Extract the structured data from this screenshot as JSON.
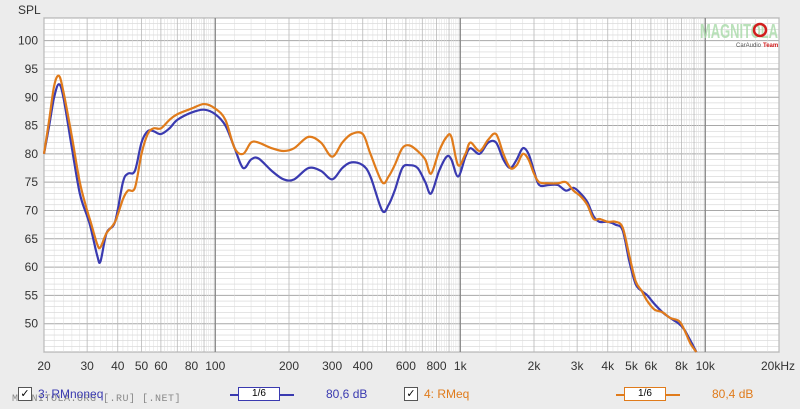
{
  "chart_data": {
    "type": "line",
    "ylabel": "SPL",
    "xscale": "log",
    "xlim": [
      20,
      20000
    ],
    "ylim": [
      45,
      104
    ],
    "grid": true,
    "yticks": [
      50,
      55,
      60,
      65,
      70,
      75,
      80,
      85,
      90,
      95,
      100
    ],
    "xticks": [
      {
        "v": 20,
        "label": "20"
      },
      {
        "v": 30,
        "label": "30"
      },
      {
        "v": 40,
        "label": "40"
      },
      {
        "v": 50,
        "label": "50"
      },
      {
        "v": 60,
        "label": "60"
      },
      {
        "v": 80,
        "label": "80"
      },
      {
        "v": 100,
        "label": "100"
      },
      {
        "v": 200,
        "label": "200"
      },
      {
        "v": 300,
        "label": "300"
      },
      {
        "v": 400,
        "label": "400"
      },
      {
        "v": 600,
        "label": "600"
      },
      {
        "v": 800,
        "label": "800"
      },
      {
        "v": 1000,
        "label": "1k"
      },
      {
        "v": 2000,
        "label": "2k"
      },
      {
        "v": 3000,
        "label": "3k"
      },
      {
        "v": 4000,
        "label": "4k"
      },
      {
        "v": 5000,
        "label": "5k"
      },
      {
        "v": 6000,
        "label": "6k"
      },
      {
        "v": 8000,
        "label": "8k"
      },
      {
        "v": 10000,
        "label": "10k"
      },
      {
        "v": 20000,
        "label": "20kHz"
      }
    ],
    "series": [
      {
        "name": "3: RMnoneq",
        "color": "#3a3ab0",
        "points": [
          [
            20,
            80
          ],
          [
            21,
            85
          ],
          [
            22,
            90
          ],
          [
            23,
            92.3
          ],
          [
            24,
            90
          ],
          [
            26,
            81
          ],
          [
            28,
            73
          ],
          [
            30,
            69
          ],
          [
            31,
            67
          ],
          [
            33,
            62
          ],
          [
            34,
            61
          ],
          [
            36,
            66
          ],
          [
            39,
            68
          ],
          [
            42,
            75
          ],
          [
            44,
            76.5
          ],
          [
            47,
            77
          ],
          [
            50,
            82
          ],
          [
            53,
            84
          ],
          [
            56,
            84
          ],
          [
            60,
            83.5
          ],
          [
            65,
            84.5
          ],
          [
            70,
            86
          ],
          [
            80,
            87.3
          ],
          [
            90,
            87.8
          ],
          [
            100,
            87
          ],
          [
            110,
            85
          ],
          [
            120,
            81
          ],
          [
            130,
            77.5
          ],
          [
            140,
            79
          ],
          [
            150,
            79.2
          ],
          [
            170,
            77
          ],
          [
            190,
            75.5
          ],
          [
            210,
            75.5
          ],
          [
            240,
            77.5
          ],
          [
            270,
            77
          ],
          [
            300,
            75.5
          ],
          [
            330,
            77.5
          ],
          [
            360,
            78.5
          ],
          [
            400,
            78
          ],
          [
            430,
            76
          ],
          [
            480,
            70
          ],
          [
            510,
            71
          ],
          [
            540,
            73.5
          ],
          [
            580,
            77.5
          ],
          [
            620,
            78
          ],
          [
            670,
            77.5
          ],
          [
            720,
            75
          ],
          [
            760,
            73
          ],
          [
            820,
            77
          ],
          [
            880,
            79.5
          ],
          [
            920,
            79
          ],
          [
            980,
            76
          ],
          [
            1050,
            79.5
          ],
          [
            1100,
            81
          ],
          [
            1200,
            80
          ],
          [
            1300,
            82
          ],
          [
            1400,
            82
          ],
          [
            1500,
            79
          ],
          [
            1600,
            77.5
          ],
          [
            1700,
            79
          ],
          [
            1800,
            81
          ],
          [
            1900,
            80
          ],
          [
            2000,
            77
          ],
          [
            2100,
            74.5
          ],
          [
            2300,
            74.5
          ],
          [
            2500,
            74.5
          ],
          [
            2700,
            73.5
          ],
          [
            2900,
            74
          ],
          [
            3100,
            73
          ],
          [
            3300,
            71.5
          ],
          [
            3500,
            69
          ],
          [
            3700,
            68
          ],
          [
            4000,
            68
          ],
          [
            4300,
            67.5
          ],
          [
            4600,
            66.5
          ],
          [
            4900,
            61
          ],
          [
            5200,
            57
          ],
          [
            5500,
            55.8
          ],
          [
            5800,
            55
          ],
          [
            6200,
            53.5
          ],
          [
            6700,
            52
          ],
          [
            7200,
            51
          ],
          [
            7800,
            50
          ],
          [
            8200,
            49
          ],
          [
            8700,
            47
          ],
          [
            9200,
            45
          ]
        ]
      },
      {
        "name": "4: RMeq",
        "color": "#e07b1b",
        "points": [
          [
            20,
            80
          ],
          [
            21,
            86
          ],
          [
            22,
            92
          ],
          [
            23,
            93.8
          ],
          [
            24,
            91
          ],
          [
            26,
            83
          ],
          [
            28,
            75
          ],
          [
            30,
            70
          ],
          [
            31,
            68
          ],
          [
            33,
            64
          ],
          [
            34,
            63.5
          ],
          [
            36,
            66
          ],
          [
            39,
            68
          ],
          [
            42,
            72
          ],
          [
            44,
            73.5
          ],
          [
            47,
            74
          ],
          [
            50,
            80
          ],
          [
            53,
            83.5
          ],
          [
            56,
            84.5
          ],
          [
            60,
            84.5
          ],
          [
            65,
            86
          ],
          [
            70,
            87
          ],
          [
            80,
            88
          ],
          [
            90,
            88.8
          ],
          [
            100,
            88
          ],
          [
            110,
            86
          ],
          [
            120,
            81
          ],
          [
            130,
            80
          ],
          [
            140,
            82
          ],
          [
            150,
            82
          ],
          [
            170,
            81
          ],
          [
            190,
            80.5
          ],
          [
            210,
            81
          ],
          [
            240,
            83
          ],
          [
            270,
            82
          ],
          [
            300,
            79.5
          ],
          [
            330,
            82
          ],
          [
            360,
            83.5
          ],
          [
            400,
            83.5
          ],
          [
            430,
            80
          ],
          [
            480,
            75
          ],
          [
            510,
            76
          ],
          [
            540,
            78
          ],
          [
            580,
            81
          ],
          [
            620,
            81.5
          ],
          [
            670,
            80.5
          ],
          [
            720,
            79
          ],
          [
            760,
            76.5
          ],
          [
            820,
            80.5
          ],
          [
            880,
            83
          ],
          [
            920,
            83
          ],
          [
            980,
            78
          ],
          [
            1050,
            80
          ],
          [
            1100,
            82
          ],
          [
            1200,
            80.5
          ],
          [
            1300,
            82.5
          ],
          [
            1400,
            83.5
          ],
          [
            1500,
            80
          ],
          [
            1600,
            77.5
          ],
          [
            1700,
            78
          ],
          [
            1800,
            80
          ],
          [
            1900,
            79
          ],
          [
            2000,
            76.5
          ],
          [
            2100,
            75
          ],
          [
            2300,
            74.8
          ],
          [
            2500,
            74.8
          ],
          [
            2700,
            75
          ],
          [
            2900,
            73.5
          ],
          [
            3100,
            72.5
          ],
          [
            3300,
            71
          ],
          [
            3500,
            68.5
          ],
          [
            3700,
            68.5
          ],
          [
            4000,
            68
          ],
          [
            4300,
            68
          ],
          [
            4600,
            67
          ],
          [
            4900,
            62
          ],
          [
            5200,
            57.5
          ],
          [
            5500,
            55.8
          ],
          [
            5800,
            54
          ],
          [
            6200,
            52.5
          ],
          [
            6700,
            52
          ],
          [
            7200,
            51
          ],
          [
            7800,
            50.5
          ],
          [
            8200,
            49
          ],
          [
            8700,
            46.5
          ],
          [
            9200,
            45
          ]
        ]
      }
    ]
  },
  "legend": {
    "items": [
      {
        "check": "✓",
        "name": "3: RMnoneq",
        "smoothing": "1/6",
        "level": "80,6 dB",
        "color": "#3a3ab0"
      },
      {
        "check": "✓",
        "name": "4: RMeq",
        "smoothing": "1/6",
        "level": "80,4 dB",
        "color": "#e07b1b"
      }
    ]
  },
  "watermark": {
    "brand": "MAGNITOLA",
    "tagline_a": "CarAudio",
    "tagline_b": "Team",
    "site": "MAGNITOLA.ORG [.RU] [.NET]"
  },
  "colors": {
    "plot_bg": "#ffffff",
    "grid_minor": "#c8c8c8",
    "grid_major": "#8a8a8a",
    "brand_red": "#d11e1e",
    "brand_green": "#a7d9a7"
  }
}
